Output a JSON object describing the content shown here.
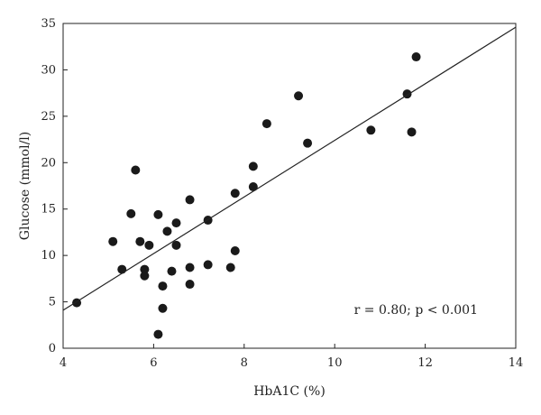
{
  "chart_data": {
    "type": "scatter",
    "title": "",
    "xlabel": "HbA1C (%)",
    "ylabel": "Glucose (mmol/l)",
    "xlim": [
      4,
      14
    ],
    "ylim": [
      0,
      35
    ],
    "xticks": [
      4,
      6,
      8,
      10,
      12,
      14
    ],
    "yticks": [
      0,
      5,
      10,
      15,
      20,
      25,
      30,
      35
    ],
    "grid": false,
    "annotation": "r = 0.80; p < 0.001",
    "regression_line": {
      "x": [
        4,
        14
      ],
      "y": [
        4.1,
        34.6
      ]
    },
    "series": [
      {
        "points": [
          [
            4.3,
            4.9
          ],
          [
            5.1,
            11.5
          ],
          [
            5.3,
            8.5
          ],
          [
            5.5,
            14.5
          ],
          [
            5.6,
            19.2
          ],
          [
            5.7,
            11.5
          ],
          [
            5.8,
            8.5
          ],
          [
            5.8,
            7.8
          ],
          [
            5.9,
            11.1
          ],
          [
            6.1,
            14.4
          ],
          [
            6.1,
            1.5
          ],
          [
            6.2,
            6.7
          ],
          [
            6.2,
            4.3
          ],
          [
            6.3,
            12.6
          ],
          [
            6.4,
            8.3
          ],
          [
            6.5,
            13.5
          ],
          [
            6.5,
            11.1
          ],
          [
            6.8,
            16.0
          ],
          [
            6.8,
            8.7
          ],
          [
            6.8,
            6.9
          ],
          [
            7.2,
            13.8
          ],
          [
            7.2,
            9.0
          ],
          [
            7.7,
            8.7
          ],
          [
            7.8,
            16.7
          ],
          [
            7.8,
            10.5
          ],
          [
            8.2,
            19.6
          ],
          [
            8.2,
            17.4
          ],
          [
            8.5,
            24.2
          ],
          [
            9.2,
            27.2
          ],
          [
            9.4,
            22.1
          ],
          [
            10.8,
            23.5
          ],
          [
            11.6,
            27.4
          ],
          [
            11.7,
            23.3
          ],
          [
            11.8,
            31.4
          ]
        ]
      }
    ]
  }
}
